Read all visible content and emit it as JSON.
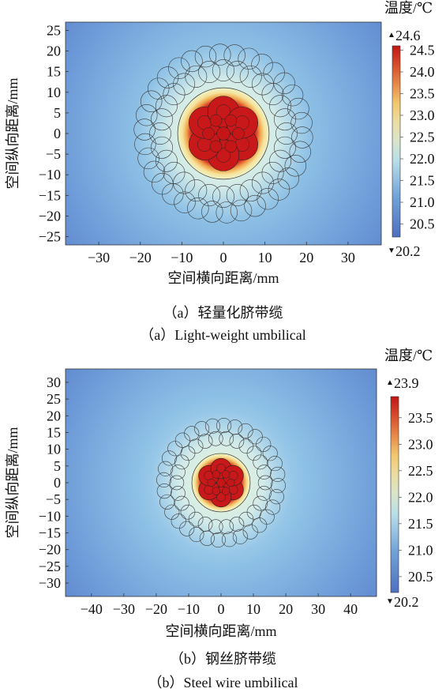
{
  "figures": [
    {
      "caption_cn": "（a）轻量化脐带缆",
      "caption_en": "（a）Light-weight umbilical"
    },
    {
      "caption_cn": "（b）钢丝脐带缆",
      "caption_en": "（b）Steel wire umbilical"
    }
  ],
  "chart_data": [
    {
      "type": "heatmap",
      "xlabel": "空间横向距离/mm",
      "ylabel": "空间纵向距离/mm",
      "colorbar_label": "温度/℃",
      "xlim": [
        -38,
        38
      ],
      "ylim": [
        -27,
        27
      ],
      "x_ticks": [
        -30,
        -20,
        -10,
        0,
        10,
        20,
        30
      ],
      "y_ticks": [
        25,
        20,
        15,
        10,
        5,
        0,
        -5,
        -10,
        -15,
        -20,
        -25
      ],
      "color_min": 20.2,
      "color_max": 24.6,
      "colorbar_max_label": "24.6",
      "colorbar_min_label": "20.2",
      "colorbar_ticks": [
        24.5,
        24.0,
        23.5,
        23.0,
        22.5,
        22.0,
        21.5,
        21.0,
        20.5
      ],
      "core_radius_mm": 11,
      "hot_core_radius_mm": 9,
      "outer_radius_mm": 19,
      "colors": {
        "min": "#4f6fc0",
        "max": "#c01515"
      }
    },
    {
      "type": "heatmap",
      "xlabel": "空间横向距离/mm",
      "ylabel": "空间纵向距离/mm",
      "colorbar_label": "温度/℃",
      "xlim": [
        -48,
        48
      ],
      "ylim": [
        -34,
        34
      ],
      "x_ticks": [
        -40,
        -30,
        -20,
        -10,
        0,
        10,
        20,
        30,
        40
      ],
      "y_ticks": [
        30,
        25,
        20,
        15,
        10,
        5,
        0,
        -5,
        -10,
        -15,
        -20,
        -25,
        -30
      ],
      "color_min": 20.2,
      "color_max": 23.9,
      "colorbar_max_label": "23.9",
      "colorbar_min_label": "20.2",
      "colorbar_ticks": [
        23.5,
        23.0,
        22.5,
        22.0,
        21.5,
        21.0,
        20.5
      ],
      "core_radius_mm": 9,
      "hot_core_radius_mm": 7.5,
      "outer_radius_mm": 19,
      "colors": {
        "min": "#4f6fc0",
        "max": "#c01515"
      }
    }
  ]
}
